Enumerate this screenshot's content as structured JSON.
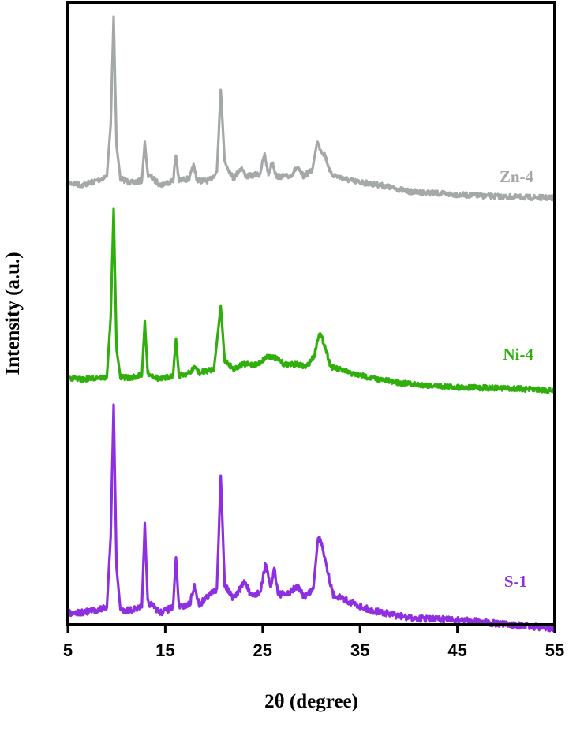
{
  "chart_data": {
    "type": "line",
    "title": "",
    "xlabel": "2θ (degree)",
    "ylabel": "Intensity (a.u.)",
    "xlim": [
      5,
      55
    ],
    "xticks": [
      5,
      15,
      25,
      35,
      45,
      55
    ],
    "yticks_shown": false,
    "legend": "inline labels at right of each trace",
    "y_unit": "arbitrary (stacked traces)",
    "series": [
      {
        "name": "Zn-4",
        "color": "#a4a8a8",
        "points": [
          [
            5.0,
            0.23
          ],
          [
            6.5,
            0.22
          ],
          [
            8.0,
            0.24
          ],
          [
            9.0,
            0.26
          ],
          [
            9.4,
            0.5
          ],
          [
            9.7,
            1.0
          ],
          [
            10.0,
            0.4
          ],
          [
            10.4,
            0.25
          ],
          [
            11.5,
            0.23
          ],
          [
            12.6,
            0.24
          ],
          [
            12.9,
            0.42
          ],
          [
            13.2,
            0.27
          ],
          [
            14.5,
            0.22
          ],
          [
            15.8,
            0.24
          ],
          [
            16.1,
            0.36
          ],
          [
            16.4,
            0.24
          ],
          [
            17.5,
            0.25
          ],
          [
            17.9,
            0.31
          ],
          [
            18.3,
            0.24
          ],
          [
            19.5,
            0.24
          ],
          [
            20.3,
            0.28
          ],
          [
            20.7,
            0.66
          ],
          [
            21.1,
            0.33
          ],
          [
            22.0,
            0.25
          ],
          [
            22.8,
            0.3
          ],
          [
            23.3,
            0.26
          ],
          [
            24.7,
            0.27
          ],
          [
            25.2,
            0.36
          ],
          [
            25.6,
            0.27
          ],
          [
            26.0,
            0.33
          ],
          [
            26.4,
            0.26
          ],
          [
            27.8,
            0.26
          ],
          [
            28.5,
            0.3
          ],
          [
            29.2,
            0.26
          ],
          [
            30.1,
            0.29
          ],
          [
            30.6,
            0.42
          ],
          [
            31.0,
            0.38
          ],
          [
            31.4,
            0.36
          ],
          [
            32.0,
            0.27
          ],
          [
            34.0,
            0.24
          ],
          [
            37.0,
            0.22
          ],
          [
            40.0,
            0.19
          ],
          [
            45.0,
            0.175
          ],
          [
            50.0,
            0.165
          ],
          [
            55.0,
            0.16
          ]
        ]
      },
      {
        "name": "Ni-4",
        "color": "#2fae0c",
        "points": [
          [
            5.0,
            0.22
          ],
          [
            6.5,
            0.21
          ],
          [
            8.0,
            0.22
          ],
          [
            9.0,
            0.22
          ],
          [
            9.4,
            0.5
          ],
          [
            9.7,
            1.0
          ],
          [
            10.0,
            0.35
          ],
          [
            10.4,
            0.22
          ],
          [
            11.5,
            0.22
          ],
          [
            12.6,
            0.23
          ],
          [
            12.9,
            0.48
          ],
          [
            13.2,
            0.24
          ],
          [
            14.5,
            0.21
          ],
          [
            15.8,
            0.23
          ],
          [
            16.1,
            0.4
          ],
          [
            16.4,
            0.23
          ],
          [
            17.5,
            0.24
          ],
          [
            18.0,
            0.27
          ],
          [
            18.5,
            0.24
          ],
          [
            20.0,
            0.26
          ],
          [
            20.7,
            0.55
          ],
          [
            21.1,
            0.3
          ],
          [
            22.0,
            0.26
          ],
          [
            23.0,
            0.28
          ],
          [
            24.5,
            0.28
          ],
          [
            25.5,
            0.32
          ],
          [
            26.3,
            0.31
          ],
          [
            27.3,
            0.28
          ],
          [
            28.5,
            0.28
          ],
          [
            29.5,
            0.27
          ],
          [
            30.3,
            0.32
          ],
          [
            30.8,
            0.43
          ],
          [
            31.3,
            0.38
          ],
          [
            32.0,
            0.27
          ],
          [
            34.0,
            0.24
          ],
          [
            37.0,
            0.21
          ],
          [
            40.0,
            0.19
          ],
          [
            45.0,
            0.175
          ],
          [
            50.0,
            0.17
          ],
          [
            55.0,
            0.16
          ]
        ]
      },
      {
        "name": "S-1",
        "color": "#8e2fe2",
        "points": [
          [
            5.0,
            0.21
          ],
          [
            6.5,
            0.21
          ],
          [
            8.0,
            0.22
          ],
          [
            9.0,
            0.23
          ],
          [
            9.4,
            0.5
          ],
          [
            9.7,
            1.0
          ],
          [
            10.0,
            0.38
          ],
          [
            10.4,
            0.22
          ],
          [
            11.5,
            0.22
          ],
          [
            12.6,
            0.23
          ],
          [
            12.9,
            0.55
          ],
          [
            13.2,
            0.25
          ],
          [
            14.5,
            0.21
          ],
          [
            15.8,
            0.23
          ],
          [
            16.1,
            0.42
          ],
          [
            16.4,
            0.23
          ],
          [
            17.5,
            0.24
          ],
          [
            18.0,
            0.31
          ],
          [
            18.5,
            0.24
          ],
          [
            19.3,
            0.27
          ],
          [
            20.3,
            0.3
          ],
          [
            20.7,
            0.73
          ],
          [
            21.1,
            0.32
          ],
          [
            22.0,
            0.26
          ],
          [
            23.2,
            0.33
          ],
          [
            23.8,
            0.27
          ],
          [
            24.8,
            0.29
          ],
          [
            25.3,
            0.4
          ],
          [
            25.8,
            0.3
          ],
          [
            26.2,
            0.38
          ],
          [
            26.6,
            0.28
          ],
          [
            27.6,
            0.28
          ],
          [
            28.5,
            0.31
          ],
          [
            29.3,
            0.27
          ],
          [
            30.2,
            0.3
          ],
          [
            30.7,
            0.5
          ],
          [
            31.1,
            0.47
          ],
          [
            31.5,
            0.4
          ],
          [
            32.2,
            0.28
          ],
          [
            34.0,
            0.25
          ],
          [
            36.0,
            0.22
          ],
          [
            40.0,
            0.19
          ],
          [
            46.0,
            0.18
          ],
          [
            50.0,
            0.165
          ],
          [
            55.0,
            0.15
          ]
        ]
      }
    ]
  }
}
